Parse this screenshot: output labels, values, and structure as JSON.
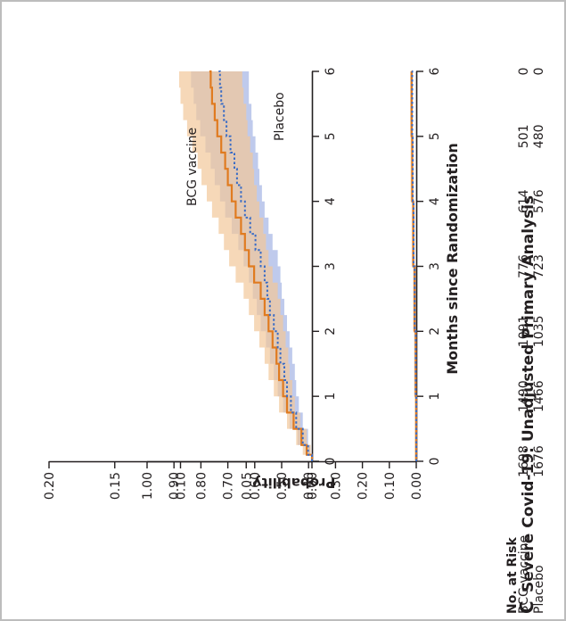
{
  "panel": {
    "letter": "C",
    "title": "Severe Covid-19: Unadjusted Primary Analysis"
  },
  "risk_table": {
    "heading": "No. at Risk",
    "groups": [
      {
        "label": "BCG vaccine",
        "counts": [
          "1698",
          "1490",
          "1091",
          "776",
          "614",
          "501",
          "0"
        ]
      },
      {
        "label": "Placebo",
        "counts": [
          "1676",
          "1466",
          "1035",
          "723",
          "576",
          "480",
          "0"
        ]
      }
    ]
  },
  "colors": {
    "bcg": "#e07b20",
    "bcg_band": "#f2c79a",
    "placebo": "#3a6cc5",
    "placebo_band": "#aab8e6",
    "axis": "#231f20",
    "frame": "#bdbdbd"
  },
  "chart_data": [
    {
      "type": "line",
      "role": "main",
      "title": "Severe Covid-19: Unadjusted Primary Analysis",
      "xlabel": "Months since Randomization",
      "ylabel": "Probability",
      "xlim": [
        0,
        6
      ],
      "ylim": [
        0,
        1
      ],
      "x_ticks": [
        "0",
        "1",
        "2",
        "3",
        "4",
        "5",
        "6"
      ],
      "y_ticks": [
        "0.00",
        "0.10",
        "0.20",
        "0.30",
        "0.40",
        "0.50",
        "0.60",
        "0.70",
        "0.80",
        "0.90",
        "1.00"
      ],
      "grid": false,
      "series": [
        {
          "name": "BCG vaccine",
          "style": "solid",
          "x": [
            0,
            1,
            2,
            3,
            4,
            5,
            6
          ],
          "y": [
            0.0,
            0.002,
            0.006,
            0.011,
            0.015,
            0.017,
            0.018
          ]
        },
        {
          "name": "Placebo",
          "style": "dotted",
          "x": [
            0,
            1,
            2,
            3,
            4,
            5,
            6
          ],
          "y": [
            0.0,
            0.002,
            0.006,
            0.01,
            0.013,
            0.015,
            0.016
          ]
        }
      ]
    },
    {
      "type": "line",
      "role": "inset",
      "xlim": [
        0,
        6
      ],
      "ylim": [
        0,
        0.2
      ],
      "y_ticks": [
        "0.00",
        "0.05",
        "0.10",
        "0.15",
        "0.20"
      ],
      "grid": false,
      "series": [
        {
          "name": "BCG vaccine",
          "style": "solid",
          "x": [
            0,
            0.1,
            0.25,
            0.5,
            0.75,
            1.0,
            1.25,
            1.5,
            1.75,
            2.0,
            2.25,
            2.5,
            2.75,
            3.0,
            3.25,
            3.5,
            3.75,
            4.0,
            4.25,
            4.5,
            4.75,
            5.0,
            5.25,
            5.5,
            5.75,
            6.0
          ],
          "y": [
            0,
            0.004,
            0.008,
            0.014,
            0.019,
            0.022,
            0.025,
            0.027,
            0.03,
            0.033,
            0.036,
            0.039,
            0.044,
            0.048,
            0.051,
            0.054,
            0.058,
            0.061,
            0.064,
            0.066,
            0.069,
            0.072,
            0.074,
            0.076,
            0.077,
            0.078
          ]
        },
        {
          "name": "BCG vaccine upper",
          "role": "ci",
          "x": [
            0,
            0.1,
            0.25,
            0.5,
            0.75,
            1.0,
            1.25,
            1.5,
            1.75,
            2.0,
            2.25,
            2.5,
            2.75,
            3.0,
            3.25,
            3.5,
            3.75,
            4.0,
            4.25,
            4.5,
            4.75,
            5.0,
            5.25,
            5.5,
            5.75,
            6.0
          ],
          "y": [
            0,
            0.007,
            0.012,
            0.019,
            0.025,
            0.029,
            0.033,
            0.036,
            0.04,
            0.044,
            0.048,
            0.052,
            0.058,
            0.063,
            0.067,
            0.071,
            0.076,
            0.08,
            0.084,
            0.087,
            0.091,
            0.095,
            0.098,
            0.1,
            0.101,
            0.102
          ]
        },
        {
          "name": "BCG vaccine lower",
          "role": "ci",
          "x": [
            0,
            0.1,
            0.25,
            0.5,
            0.75,
            1.0,
            1.25,
            1.5,
            1.75,
            2.0,
            2.25,
            2.5,
            2.75,
            3.0,
            3.25,
            3.5,
            3.75,
            4.0,
            4.25,
            4.5,
            4.75,
            5.0,
            5.25,
            5.5,
            5.75,
            6.0
          ],
          "y": [
            0,
            0.001,
            0.004,
            0.009,
            0.013,
            0.015,
            0.017,
            0.018,
            0.02,
            0.022,
            0.024,
            0.026,
            0.03,
            0.033,
            0.035,
            0.037,
            0.04,
            0.042,
            0.044,
            0.045,
            0.047,
            0.049,
            0.05,
            0.052,
            0.053,
            0.054
          ]
        },
        {
          "name": "Placebo",
          "style": "dotted",
          "x": [
            0,
            0.1,
            0.25,
            0.5,
            0.75,
            1.0,
            1.25,
            1.5,
            1.75,
            2.0,
            2.25,
            2.5,
            2.75,
            3.0,
            3.25,
            3.5,
            3.75,
            4.0,
            4.25,
            4.5,
            4.75,
            5.0,
            5.25,
            5.5,
            5.75,
            6.0
          ],
          "y": [
            0,
            0.003,
            0.007,
            0.012,
            0.016,
            0.019,
            0.021,
            0.024,
            0.026,
            0.029,
            0.032,
            0.034,
            0.036,
            0.039,
            0.043,
            0.047,
            0.051,
            0.054,
            0.057,
            0.059,
            0.062,
            0.065,
            0.067,
            0.069,
            0.07,
            0.071
          ]
        },
        {
          "name": "Placebo upper",
          "role": "ci",
          "x": [
            0,
            0.1,
            0.25,
            0.5,
            0.75,
            1.0,
            1.25,
            1.5,
            1.75,
            2.0,
            2.25,
            2.5,
            2.75,
            3.0,
            3.25,
            3.5,
            3.75,
            4.0,
            4.25,
            4.5,
            4.75,
            5.0,
            5.25,
            5.5,
            5.75,
            6.0
          ],
          "y": [
            0,
            0.005,
            0.011,
            0.017,
            0.022,
            0.026,
            0.029,
            0.032,
            0.035,
            0.039,
            0.042,
            0.045,
            0.048,
            0.052,
            0.056,
            0.061,
            0.066,
            0.07,
            0.074,
            0.077,
            0.081,
            0.085,
            0.088,
            0.09,
            0.092,
            0.093
          ]
        },
        {
          "name": "Placebo lower",
          "role": "ci",
          "x": [
            0,
            0.1,
            0.25,
            0.5,
            0.75,
            1.0,
            1.25,
            1.5,
            1.75,
            2.0,
            2.25,
            2.5,
            2.75,
            3.0,
            3.25,
            3.5,
            3.75,
            4.0,
            4.25,
            4.5,
            4.75,
            5.0,
            5.25,
            5.5,
            5.75,
            6.0
          ],
          "y": [
            0,
            0.001,
            0.003,
            0.007,
            0.01,
            0.012,
            0.013,
            0.015,
            0.017,
            0.019,
            0.021,
            0.023,
            0.024,
            0.026,
            0.03,
            0.033,
            0.036,
            0.038,
            0.04,
            0.041,
            0.043,
            0.045,
            0.046,
            0.048,
            0.048,
            0.049
          ]
        }
      ]
    }
  ]
}
